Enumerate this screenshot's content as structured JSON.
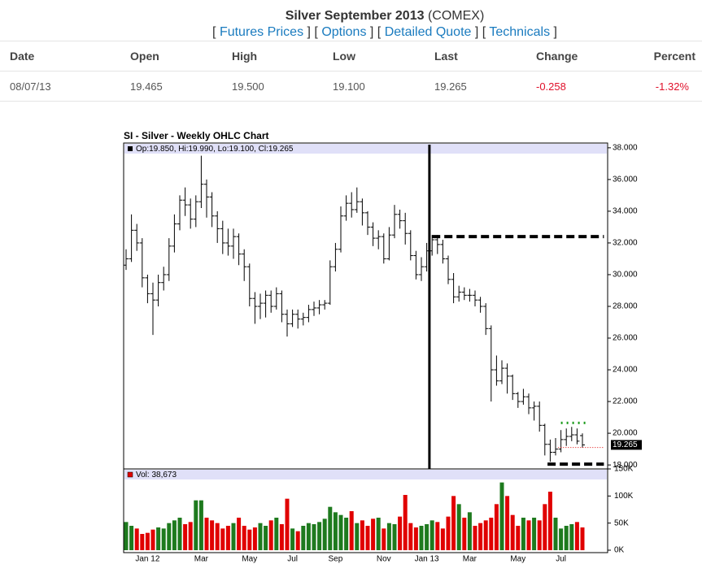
{
  "header": {
    "title": "Silver September 2013",
    "exchange": "(COMEX)",
    "links": [
      "Futures Prices",
      "Options",
      "Detailed Quote",
      "Technicals"
    ]
  },
  "table": {
    "columns": [
      "Date",
      "Open",
      "High",
      "Low",
      "Last",
      "Change",
      "Percent"
    ],
    "rows": [
      [
        "08/07/13",
        "19.465",
        "19.500",
        "19.100",
        "19.265",
        "-0.258",
        "-1.32%"
      ]
    ]
  },
  "chart_data": {
    "type": "ohlc",
    "title": "SI - Silver - Weekly OHLC Chart",
    "ohlc_label": "Op:19.850, Hi:19.990, Lo:19.100, Cl:19.265",
    "categories": [
      null,
      null,
      null,
      null,
      "Jan 12",
      null,
      null,
      null,
      null,
      null,
      null,
      null,
      null,
      null,
      "Mar",
      null,
      null,
      null,
      null,
      null,
      null,
      null,
      null,
      "May",
      null,
      null,
      null,
      null,
      null,
      null,
      null,
      "Jul",
      null,
      null,
      null,
      null,
      null,
      null,
      null,
      "Sep",
      null,
      null,
      null,
      null,
      null,
      null,
      null,
      null,
      "Nov",
      null,
      null,
      null,
      null,
      null,
      null,
      null,
      "Jan 13",
      null,
      null,
      null,
      null,
      null,
      null,
      null,
      "Mar",
      null,
      null,
      null,
      null,
      null,
      null,
      null,
      null,
      "May",
      null,
      null,
      null,
      null,
      null,
      null,
      null,
      "Jul",
      null,
      null,
      null,
      null
    ],
    "open": [
      30.6,
      31.0,
      32.8,
      32.0,
      29.8,
      28.8,
      28.4,
      29.5,
      30.0,
      31.8,
      33.2,
      34.7,
      34.4,
      33.5,
      34.6,
      35.7,
      34.9,
      33.7,
      32.9,
      32.0,
      31.8,
      32.4,
      31.3,
      30.5,
      28.5,
      28.0,
      28.2,
      28.7,
      28.0,
      28.8,
      27.5,
      26.9,
      27.5,
      27.2,
      27.3,
      27.8,
      27.9,
      28.1,
      28.2,
      30.5,
      31.6,
      33.7,
      34.5,
      34.1,
      34.6,
      33.9,
      33.0,
      32.3,
      32.4,
      31.0,
      32.5,
      33.8,
      33.4,
      32.6,
      31.2,
      30.0,
      30.5,
      31.5,
      32.2,
      31.9,
      31.0,
      29.7,
      28.6,
      28.9,
      28.7,
      28.7,
      28.4,
      28.0,
      26.6,
      24.0,
      23.3,
      24.1,
      23.6,
      22.5,
      22.0,
      22.3,
      21.6,
      21.7,
      20.5,
      19.3,
      18.8,
      19.0,
      19.6,
      19.8,
      19.9,
      19.85
    ],
    "high": [
      31.6,
      33.8,
      33.2,
      32.3,
      30.0,
      29.5,
      30.0,
      30.5,
      32.3,
      33.8,
      35.0,
      35.5,
      34.8,
      35.0,
      37.5,
      36.0,
      35.2,
      34.0,
      33.4,
      32.9,
      32.9,
      32.6,
      31.6,
      30.7,
      28.9,
      28.8,
      29.0,
      29.0,
      29.2,
      29.0,
      27.8,
      27.8,
      27.8,
      27.6,
      28.1,
      28.3,
      28.4,
      28.4,
      30.9,
      32.0,
      34.3,
      35.0,
      35.2,
      35.5,
      34.8,
      34.0,
      33.3,
      32.8,
      32.6,
      33.0,
      34.4,
      34.1,
      33.9,
      32.8,
      31.5,
      31.1,
      32.0,
      32.5,
      32.5,
      32.2,
      31.2,
      30.1,
      29.3,
      29.2,
      29.1,
      29.0,
      28.6,
      28.2,
      26.8,
      24.9,
      24.6,
      24.4,
      23.7,
      22.6,
      22.8,
      22.5,
      22.0,
      22.0,
      20.6,
      19.6,
      19.7,
      20.2,
      20.3,
      20.4,
      20.3,
      19.99
    ],
    "low": [
      30.3,
      30.8,
      31.5,
      29.2,
      28.2,
      26.2,
      28.0,
      29.0,
      29.6,
      31.4,
      32.8,
      33.7,
      32.9,
      33.0,
      34.2,
      33.6,
      33.0,
      32.0,
      31.3,
      31.2,
      31.0,
      30.6,
      29.6,
      28.0,
      26.9,
      27.2,
      27.3,
      27.6,
      27.8,
      27.0,
      26.1,
      26.7,
      26.6,
      26.8,
      27.0,
      27.4,
      27.5,
      27.8,
      28.1,
      30.2,
      31.4,
      33.4,
      33.6,
      33.9,
      33.1,
      32.5,
      31.8,
      31.6,
      30.7,
      30.9,
      32.3,
      32.9,
      31.9,
      30.9,
      29.7,
      29.6,
      30.2,
      31.2,
      31.3,
      30.7,
      29.4,
      28.2,
      28.3,
      28.4,
      28.3,
      28.0,
      27.6,
      26.2,
      22.0,
      23.0,
      23.1,
      22.5,
      22.1,
      21.6,
      21.8,
      21.2,
      20.8,
      20.1,
      18.6,
      18.2,
      18.6,
      18.8,
      19.2,
      19.5,
      19.3,
      19.1
    ],
    "close": [
      31.0,
      32.8,
      32.0,
      29.8,
      28.8,
      28.4,
      29.5,
      30.0,
      31.8,
      33.2,
      34.7,
      34.4,
      33.5,
      34.6,
      35.7,
      34.9,
      33.7,
      32.9,
      32.0,
      31.8,
      32.4,
      31.3,
      30.5,
      28.5,
      28.0,
      28.2,
      28.7,
      28.0,
      28.8,
      27.5,
      26.9,
      27.5,
      27.2,
      27.3,
      27.8,
      27.9,
      28.1,
      28.2,
      30.5,
      31.6,
      33.7,
      34.5,
      34.1,
      34.6,
      33.9,
      33.0,
      32.3,
      32.4,
      31.0,
      32.5,
      33.8,
      33.4,
      32.6,
      31.2,
      30.0,
      30.5,
      31.5,
      32.2,
      31.9,
      31.0,
      29.7,
      28.6,
      28.9,
      28.7,
      28.7,
      28.4,
      28.0,
      26.6,
      24.0,
      23.3,
      24.1,
      23.6,
      22.5,
      22.0,
      22.3,
      21.6,
      21.7,
      20.5,
      19.3,
      18.8,
      19.0,
      19.6,
      19.8,
      19.9,
      19.5,
      19.265
    ],
    "color": "#000000",
    "ylim": [
      17.75,
      38.3
    ],
    "yticks": [
      {
        "value": 18,
        "label": "18.000"
      },
      {
        "value": 20,
        "label": "20.000"
      },
      {
        "value": 22,
        "label": "22.000"
      },
      {
        "value": 24,
        "label": "24.000"
      },
      {
        "value": 26,
        "label": "26.000"
      },
      {
        "value": 28,
        "label": "28.000"
      },
      {
        "value": 30,
        "label": "30.000"
      },
      {
        "value": 32,
        "label": "32.000"
      },
      {
        "value": 34,
        "label": "34.000"
      },
      {
        "value": 36,
        "label": "36.000"
      },
      {
        "value": 38,
        "label": "38.000"
      }
    ],
    "reference_lines": [
      {
        "x": 56.5,
        "color": "#000000",
        "width": 3
      },
      {
        "y": 32.4,
        "start": 57,
        "end": 89,
        "color": "#000000",
        "width": 4,
        "dash": "10 5"
      },
      {
        "y": 18.05,
        "start": 78.5,
        "end": 89,
        "color": "#000000",
        "width": 4,
        "dash": "10 5"
      },
      {
        "y": 20.65,
        "start": 81,
        "end": 86,
        "color": "#1a9a1a",
        "width": 3,
        "dash": "2 5"
      },
      {
        "y": 19.1,
        "start": 80.5,
        "end": 89,
        "color": "#e00000",
        "width": 1,
        "dash": "1 2"
      }
    ],
    "volume": {
      "label": "Vol: 38,673",
      "values": [
        52,
        45,
        40,
        30,
        32,
        38,
        42,
        40,
        50,
        55,
        60,
        48,
        52,
        92,
        92,
        60,
        55,
        50,
        40,
        45,
        50,
        60,
        45,
        38,
        42,
        50,
        45,
        55,
        60,
        48,
        95,
        40,
        35,
        45,
        50,
        48,
        52,
        58,
        80,
        70,
        65,
        60,
        72,
        50,
        55,
        45,
        58,
        60,
        40,
        50,
        48,
        62,
        102,
        50,
        42,
        45,
        48,
        55,
        52,
        40,
        62,
        100,
        85,
        60,
        70,
        45,
        50,
        55,
        60,
        85,
        125,
        100,
        65,
        45,
        60,
        55,
        60,
        55,
        85,
        108,
        60,
        40,
        45,
        48,
        52,
        42
      ],
      "up_color": "#1e7a1e",
      "down_color": "#e00000",
      "ylim": [
        -4.5,
        150
      ],
      "yticks": [
        {
          "value": 0,
          "label": "0K"
        },
        {
          "value": 50,
          "label": "50K"
        },
        {
          "value": 100,
          "label": "100K"
        },
        {
          "value": 150,
          "label": "150K"
        }
      ]
    }
  }
}
